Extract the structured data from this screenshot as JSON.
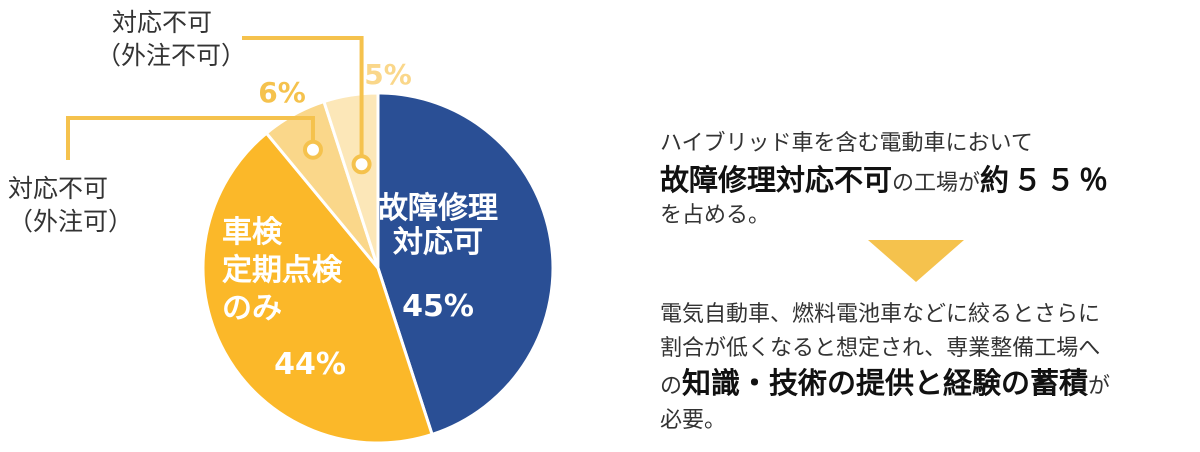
{
  "chart_data": {
    "type": "pie",
    "slices": [
      {
        "label_lines": [
          "故障修理",
          "対応可"
        ],
        "value": 45,
        "value_label": "45%",
        "color": "#2a4f95"
      },
      {
        "label_lines": [
          "車検",
          "定期点検",
          "のみ"
        ],
        "value": 44,
        "value_label": "44%",
        "color": "#fbb829"
      },
      {
        "label": "対応不可（外注可）",
        "label_lines": [
          "対応不可",
          "（外注可）"
        ],
        "value": 6,
        "value_label": "6%",
        "color": "#fad78a"
      },
      {
        "label": "対応不可（外注不可）",
        "label_lines": [
          "対応不可",
          "（外注不可）"
        ],
        "value": 5,
        "value_label": "5%",
        "color": "#fce7b8"
      }
    ],
    "callout_color": "#f5c24d"
  },
  "panel": {
    "line1": "ハイブリッド車を含む電動車において",
    "line2_bold": "故障修理対応不可",
    "line2_mid": "の工場が",
    "line2_bold2": "約５５％",
    "line3": "を占める。",
    "para2_line1": "電気自動車、燃料電池車などに絞るとさらに",
    "para2_line2": "割合が低くなると想定され、専業整備工場へ",
    "para2_line3_pre": "の",
    "para2_line3_bold": "知識・技術の提供と経験の蓄積",
    "para2_line3_post": "が",
    "para2_line4": "必要。"
  }
}
